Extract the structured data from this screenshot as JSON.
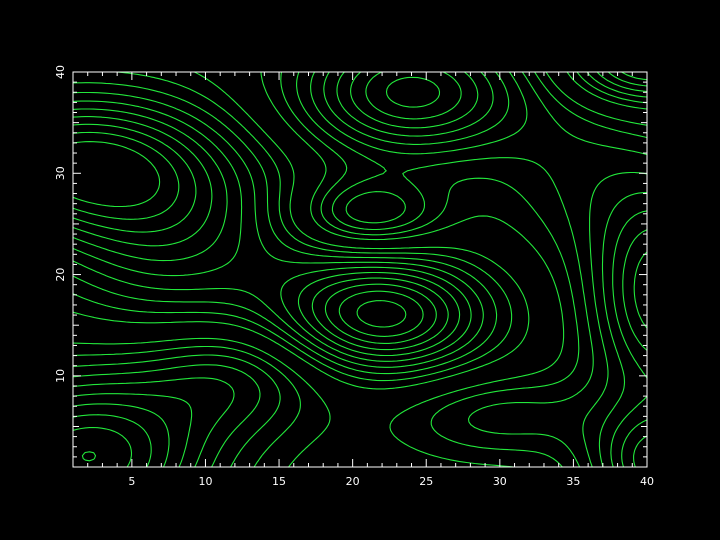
{
  "chart_data": {
    "type": "contour",
    "title": "",
    "xlabel": "",
    "ylabel": "",
    "xlim": [
      1,
      40
    ],
    "ylim": [
      1,
      40
    ],
    "xticks": [
      5,
      10,
      15,
      20,
      25,
      30,
      35,
      40
    ],
    "yticks": [
      10,
      20,
      30,
      40
    ],
    "line_color": "#22e63b",
    "axis_color": "#ffffff",
    "background": "#000000",
    "negative_levels_style": "dashed",
    "positive_levels_style": "solid",
    "grid": false,
    "extrema": [
      {
        "x": 22,
        "y": 16,
        "kind": "minimum"
      },
      {
        "x": 3,
        "y": 31,
        "kind": "minimum"
      },
      {
        "x": 24,
        "y": 37,
        "kind": "maximum"
      },
      {
        "x": 3,
        "y": 3,
        "kind": "maximum"
      },
      {
        "x": 40,
        "y": 18,
        "kind": "maximum"
      },
      {
        "x": 40,
        "y": 2,
        "kind": "maximum"
      },
      {
        "x": 39,
        "y": 39,
        "kind": "minimum"
      }
    ]
  }
}
